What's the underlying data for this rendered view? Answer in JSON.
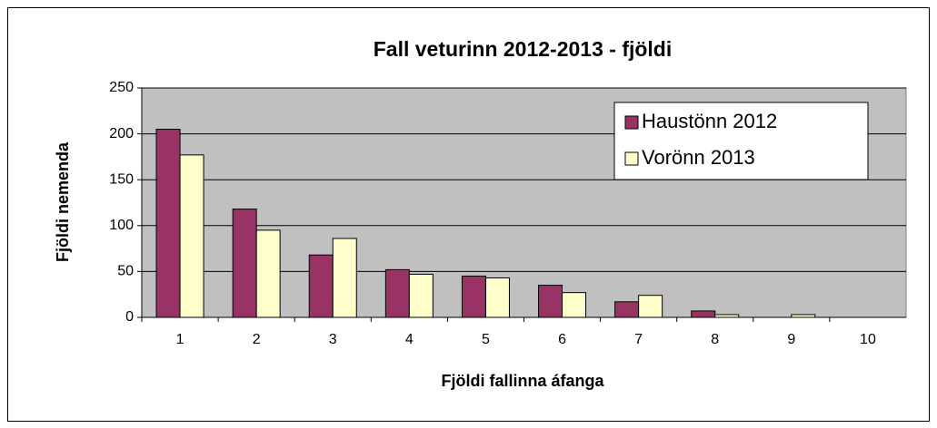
{
  "chart_data": {
    "type": "bar",
    "title": "Fall veturinn 2012-2013 - fjöldi",
    "x_label": "Fjöldi fallinna áfanga",
    "y_label": "Fjöldi nemenda",
    "categories": [
      "1",
      "2",
      "3",
      "4",
      "5",
      "6",
      "7",
      "8",
      "9",
      "10"
    ],
    "series": [
      {
        "name": "Haustönn 2012",
        "color": "#993366",
        "values": [
          205,
          118,
          68,
          52,
          45,
          35,
          17,
          7,
          0,
          0
        ]
      },
      {
        "name": "Vorönn 2013",
        "color": "#FFFFCC",
        "values": [
          177,
          95,
          86,
          47,
          43,
          27,
          24,
          3,
          3,
          0
        ]
      }
    ],
    "ylim": [
      0,
      250
    ],
    "yticks": [
      0,
      50,
      100,
      150,
      200,
      250
    ],
    "grid": true,
    "plot_background": "#C0C0C0",
    "legend": "upper right"
  }
}
